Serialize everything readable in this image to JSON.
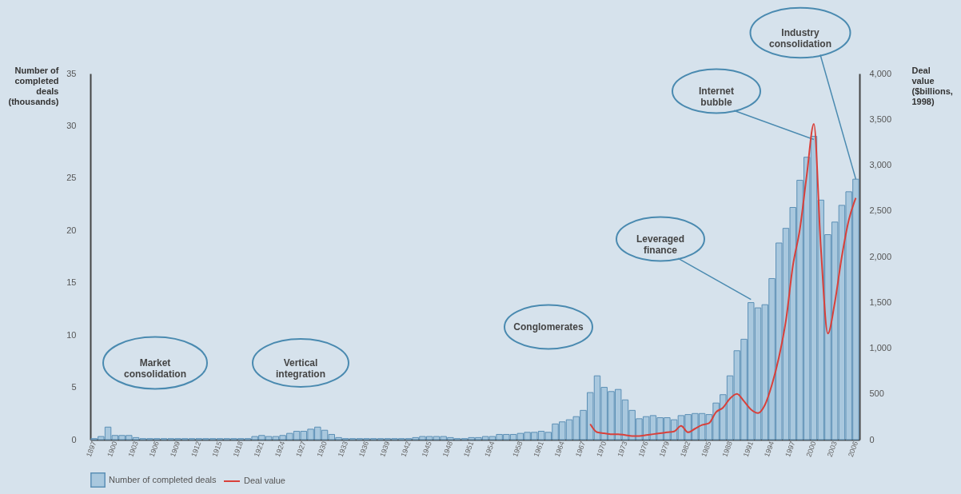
{
  "chart_data": {
    "type": "bar",
    "categories": [
      "1897",
      null,
      null,
      "1900",
      null,
      null,
      "1903",
      null,
      null,
      "1906",
      null,
      null,
      "1909",
      null,
      null,
      "1912",
      null,
      null,
      "1915",
      null,
      null,
      "1918",
      null,
      null,
      "1921",
      null,
      null,
      "1924",
      null,
      null,
      "1927",
      null,
      null,
      "1930",
      null,
      null,
      "1933",
      null,
      null,
      "1936",
      null,
      null,
      "1939",
      null,
      null,
      "1942",
      null,
      null,
      "1945",
      null,
      null,
      "1948",
      null,
      null,
      "1951",
      null,
      null,
      "1954",
      null,
      null,
      null,
      "1958",
      null,
      null,
      "1961",
      null,
      null,
      "1964",
      null,
      null,
      "1967",
      null,
      null,
      "1970",
      null,
      null,
      "1973",
      null,
      null,
      "1976",
      null,
      null,
      "1979",
      null,
      null,
      "1982",
      null,
      null,
      "1985",
      null,
      null,
      "1988",
      null,
      null,
      "1991",
      null,
      null,
      "1994",
      null,
      null,
      "1997",
      null,
      null,
      "2000",
      null,
      null,
      "2003",
      null,
      null,
      "2006"
    ],
    "xlabel": null,
    "ylabel": "Number of\ncompleted\ndeals\n(thousands)",
    "y2label": "Deal\nvalue\n($billions,\n1998)",
    "ylim": [
      0,
      35
    ],
    "yticks": [
      0,
      5,
      10,
      15,
      20,
      25,
      30,
      35
    ],
    "y2lim": [
      0,
      4000
    ],
    "y2ticks": [
      0,
      500,
      {
        "value": 1000,
        "label": "1,000"
      },
      {
        "value": 1500,
        "label": "1,500"
      },
      {
        "value": 2000,
        "label": "2,000"
      },
      {
        "value": 2500,
        "label": "2,500"
      },
      {
        "value": 3000,
        "label": "3,000"
      },
      {
        "value": 3500,
        "label": "3,500"
      },
      {
        "value": 4000,
        "label": "4,000"
      }
    ],
    "series": [
      {
        "name": "Number of completed deals",
        "color": "#a9c8de",
        "values": [
          0.1,
          0.3,
          1.2,
          0.4,
          0.4,
          0.4,
          0.2,
          0.1,
          0.1,
          0.1,
          0.1,
          0.1,
          0.1,
          0.1,
          0.1,
          0.1,
          0.1,
          0.1,
          0.1,
          0.1,
          0.1,
          0.1,
          0.1,
          0.3,
          0.4,
          0.3,
          0.3,
          0.4,
          0.6,
          0.8,
          0.8,
          1.0,
          1.2,
          0.9,
          0.5,
          0.2,
          0.1,
          0.1,
          0.1,
          0.1,
          0.1,
          0.1,
          0.1,
          0.1,
          0.1,
          0.1,
          0.2,
          0.3,
          0.3,
          0.3,
          0.3,
          0.2,
          0.1,
          0.1,
          0.2,
          0.2,
          0.3,
          0.3,
          0.5,
          0.5,
          0.5,
          0.6,
          0.7,
          0.7,
          0.8,
          0.7,
          1.5,
          1.7,
          1.9,
          2.2,
          2.8,
          4.5,
          6.1,
          5.0,
          4.6,
          4.8,
          3.8,
          2.8,
          2.0,
          2.2,
          2.3,
          2.1,
          2.1,
          1.9,
          2.3,
          2.4,
          2.5,
          2.5,
          2.4,
          3.5,
          4.3,
          6.1,
          8.5,
          9.6,
          13.1,
          12.6,
          12.9,
          15.4,
          18.8,
          20.2,
          22.2,
          24.8,
          27.0,
          29.0,
          22.9,
          19.6,
          20.8,
          22.4,
          23.7,
          24.9
        ]
      },
      {
        "name": "Deal value",
        "type": "line",
        "axis": "y2",
        "color": "#d9403a",
        "values": [
          null,
          null,
          null,
          null,
          null,
          null,
          null,
          null,
          null,
          null,
          null,
          null,
          null,
          null,
          null,
          null,
          null,
          null,
          null,
          null,
          null,
          null,
          null,
          null,
          null,
          null,
          null,
          null,
          null,
          null,
          null,
          null,
          null,
          null,
          null,
          null,
          null,
          null,
          null,
          null,
          null,
          null,
          null,
          null,
          null,
          null,
          null,
          null,
          null,
          null,
          null,
          null,
          null,
          null,
          null,
          null,
          null,
          null,
          null,
          null,
          null,
          null,
          null,
          null,
          null,
          null,
          null,
          null,
          null,
          null,
          null,
          170,
          80,
          70,
          60,
          60,
          50,
          40,
          40,
          50,
          60,
          70,
          80,
          90,
          150,
          80,
          120,
          160,
          180,
          300,
          350,
          450,
          500,
          420,
          330,
          290,
          380,
          600,
          900,
          1300,
          1900,
          2300,
          2900,
          3450,
          2100,
          1160,
          1500,
          2000,
          2400,
          2640
        ]
      }
    ],
    "annotations": [
      "Market\nconsolidation",
      "Vertical\nintegration",
      "Conglomerates",
      {
        "text": "Leveraged\nfinance",
        "x": "1991",
        "y": 13.4
      },
      {
        "text": "Internet\nbubble",
        "x": "2000",
        "y": 28.7
      },
      {
        "text": "Industry\nconsolidation",
        "x": "2006",
        "y": 24.9
      }
    ],
    "grid": false,
    "legend": "bottom left"
  }
}
